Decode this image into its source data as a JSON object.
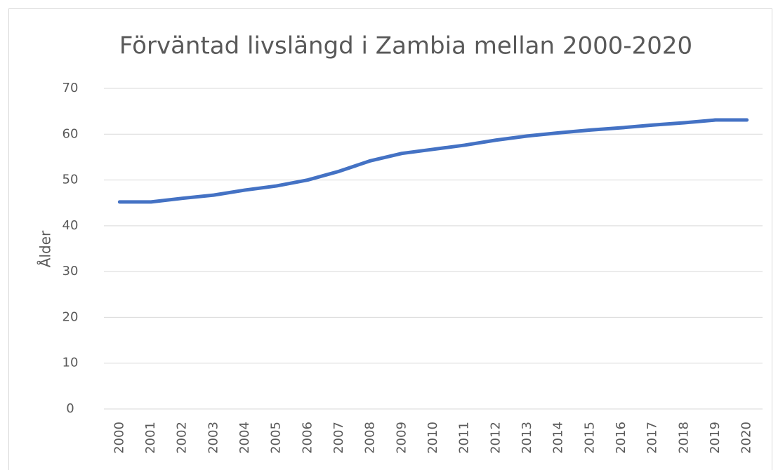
{
  "chart_data": {
    "type": "line",
    "title": "Förväntad livslängd i Zambia mellan 2000-2020",
    "y_label": "Ålder",
    "categories": [
      "2000",
      "2001",
      "2002",
      "2003",
      "2004",
      "2005",
      "2006",
      "2007",
      "2008",
      "2009",
      "2010",
      "2011",
      "2012",
      "2013",
      "2014",
      "2015",
      "2016",
      "2017",
      "2018",
      "2019",
      "2020"
    ],
    "series": [
      {
        "name": "Ålder",
        "color": "#4472c4",
        "values": [
          45.2,
          45.2,
          46.0,
          46.7,
          47.8,
          48.7,
          50.0,
          51.9,
          54.2,
          55.8,
          56.7,
          57.6,
          58.7,
          59.6,
          60.3,
          60.9,
          61.4,
          62.0,
          62.5,
          63.1,
          63.1
        ]
      }
    ],
    "ylim": [
      0,
      70
    ],
    "yticks": [
      0,
      10,
      20,
      30,
      40,
      50,
      60,
      70
    ],
    "grid": true
  }
}
